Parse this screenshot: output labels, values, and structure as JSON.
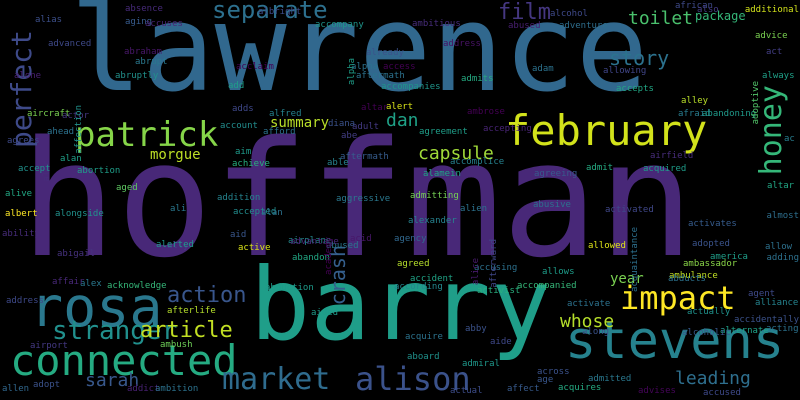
{
  "wordcloud": {
    "colors": {
      "background": "#000000",
      "dark_purple": "#46186e",
      "purple": "#482878",
      "indigo": "#3b528b",
      "blue": "#31688e",
      "teal_blue": "#26828e",
      "teal": "#1f9e89",
      "green": "#35b779",
      "light_green": "#6dcd59",
      "yellow_green": "#b4de2c",
      "yellow": "#e1e31e",
      "deep_violet": "#440154"
    },
    "words": [
      {
        "text": "hoffman",
        "color": "#482878"
      },
      {
        "text": "lawrence",
        "color": "#31688e"
      },
      {
        "text": "barry",
        "color": "#1f9e89"
      },
      {
        "text": "february",
        "color": "#d2e21b"
      },
      {
        "text": "stevens",
        "color": "#26828e"
      },
      {
        "text": "rosa",
        "color": "#2a788e"
      },
      {
        "text": "connected",
        "color": "#25ab82"
      },
      {
        "text": "impact",
        "color": "#fde725"
      },
      {
        "text": "patrick",
        "color": "#86d549"
      },
      {
        "text": "alison",
        "color": "#3b528b"
      },
      {
        "text": "market",
        "color": "#2f6c8e"
      },
      {
        "text": "honey",
        "color": "#35b779"
      },
      {
        "text": "separate",
        "color": "#2d708e"
      },
      {
        "text": "perfect",
        "color": "#3e4a89"
      },
      {
        "text": "stranger",
        "color": "#21908d"
      },
      {
        "text": "article",
        "color": "#c2df23"
      },
      {
        "text": "action",
        "color": "#39568c"
      },
      {
        "text": "capsule",
        "color": "#a0da39"
      },
      {
        "text": "film",
        "color": "#453781"
      },
      {
        "text": "story",
        "color": "#2c728e"
      },
      {
        "text": "crash",
        "color": "#355f8d"
      },
      {
        "text": "sarah",
        "color": "#38588c"
      },
      {
        "text": "whose",
        "color": "#b5de2b"
      },
      {
        "text": "leading",
        "color": "#2e6f8e"
      },
      {
        "text": "toilet",
        "color": "#4ac16d"
      },
      {
        "text": "dan",
        "color": "#1fa187"
      },
      {
        "text": "summary",
        "color": "#b8de29"
      },
      {
        "text": "morgue",
        "color": "#bddf26"
      },
      {
        "text": "year",
        "color": "#7ad151"
      },
      {
        "text": "package",
        "color": "#35b779"
      },
      {
        "text": "aircraft",
        "color": "#7ad151"
      },
      {
        "text": "ahead",
        "color": "#2c728e"
      },
      {
        "text": "albert",
        "color": "#fde725"
      },
      {
        "text": "alive",
        "color": "#22a884"
      },
      {
        "text": "abigail",
        "color": "#46327e"
      },
      {
        "text": "alex",
        "color": "#2a788e"
      },
      {
        "text": "affair",
        "color": "#482878"
      },
      {
        "text": "address",
        "color": "#3e4989"
      },
      {
        "text": "airport",
        "color": "#443983"
      },
      {
        "text": "allen",
        "color": "#31688e"
      },
      {
        "text": "adopt",
        "color": "#3b528b"
      },
      {
        "text": "addict",
        "color": "#482173"
      },
      {
        "text": "ambition",
        "color": "#2c728e"
      },
      {
        "text": "ambush",
        "color": "#6ece58"
      },
      {
        "text": "afterlife",
        "color": "#b5de2b"
      },
      {
        "text": "acknowledge",
        "color": "#35b779"
      },
      {
        "text": "alongside",
        "color": "#21918c"
      },
      {
        "text": "ally",
        "color": "#433e85"
      },
      {
        "text": "alerted",
        "color": "#1f988b"
      },
      {
        "text": "active",
        "color": "#d8e219"
      },
      {
        "text": "airplane",
        "color": "#23898e"
      },
      {
        "text": "abandon",
        "color": "#22a884"
      },
      {
        "text": "abused",
        "color": "#2a788e"
      },
      {
        "text": "advantage",
        "color": "#482878"
      },
      {
        "text": "acid",
        "color": "#481769"
      },
      {
        "text": "agency",
        "color": "#31688e"
      },
      {
        "text": "academy",
        "color": "#440154"
      },
      {
        "text": "alexander",
        "color": "#26828e"
      },
      {
        "text": "aggressive",
        "color": "#2a788e"
      },
      {
        "text": "admitting",
        "color": "#75d054"
      },
      {
        "text": "accepted",
        "color": "#228c8d"
      },
      {
        "text": "addition",
        "color": "#25838e"
      },
      {
        "text": "achieve",
        "color": "#29af7f"
      },
      {
        "text": "aged",
        "color": "#5ec962"
      },
      {
        "text": "abortion",
        "color": "#1f9e89"
      },
      {
        "text": "alan",
        "color": "#1fa088"
      },
      {
        "text": "alec",
        "color": "#472d7b"
      },
      {
        "text": "agrees",
        "color": "#3e4a89"
      },
      {
        "text": "actor",
        "color": "#453781"
      },
      {
        "text": "ability",
        "color": "#472c7a"
      },
      {
        "text": "accept",
        "color": "#20928c"
      },
      {
        "text": "alpha",
        "color": "#2c728e"
      },
      {
        "text": "access",
        "color": "#440154"
      },
      {
        "text": "aftermath",
        "color": "#365c8d"
      },
      {
        "text": "alien",
        "color": "#2c728e"
      },
      {
        "text": "ambulance",
        "color": "#c0df25"
      },
      {
        "text": "airfield",
        "color": "#472d7b"
      },
      {
        "text": "acquired",
        "color": "#1e9c89"
      },
      {
        "text": "admit",
        "color": "#25ab82"
      },
      {
        "text": "alley",
        "color": "#b8de29"
      },
      {
        "text": "afraid",
        "color": "#287c8e"
      },
      {
        "text": "abandoning",
        "color": "#1f9a8a"
      },
      {
        "text": "african",
        "color": "#3e4a89"
      },
      {
        "text": "also",
        "color": "#443b84"
      },
      {
        "text": "additional",
        "color": "#d2e21b"
      },
      {
        "text": "advice",
        "color": "#7ad151"
      },
      {
        "text": "act",
        "color": "#433e85"
      },
      {
        "text": "always",
        "color": "#1fa088"
      },
      {
        "text": "adoptive",
        "color": "#52c569"
      },
      {
        "text": "ac",
        "color": "#287d8e"
      },
      {
        "text": "altar",
        "color": "#22a785"
      },
      {
        "text": "almost",
        "color": "#2e6f8e"
      },
      {
        "text": "allow",
        "color": "#2d718e"
      },
      {
        "text": "adding",
        "color": "#2d718e"
      },
      {
        "text": "america",
        "color": "#1f9e89"
      },
      {
        "text": "agent",
        "color": "#3e4a89"
      },
      {
        "text": "alliance",
        "color": "#25838e"
      },
      {
        "text": "accidentally",
        "color": "#3b528b"
      },
      {
        "text": "acting",
        "color": "#2c728e"
      },
      {
        "text": "alternate",
        "color": "#1fa188"
      },
      {
        "text": "alcoholic",
        "color": "#38598c"
      },
      {
        "text": "advises",
        "color": "#450559"
      },
      {
        "text": "accused",
        "color": "#3e4989"
      },
      {
        "text": "acquires",
        "color": "#25ab82"
      },
      {
        "text": "admitted",
        "color": "#2a788e"
      },
      {
        "text": "age",
        "color": "#39568c"
      },
      {
        "text": "across",
        "color": "#3b528b"
      },
      {
        "text": "affect",
        "color": "#375a8c"
      },
      {
        "text": "aide",
        "color": "#3f4889"
      },
      {
        "text": "actual",
        "color": "#3d4d8a"
      },
      {
        "text": "admiral",
        "color": "#1f988b"
      },
      {
        "text": "abby",
        "color": "#3b528b"
      },
      {
        "text": "aboard",
        "color": "#20928c"
      },
      {
        "text": "acquire",
        "color": "#2c738e"
      },
      {
        "text": "aided",
        "color": "#1e9b8a"
      },
      {
        "text": "activist",
        "color": "#29af7f"
      },
      {
        "text": "accompanied",
        "color": "#35b779"
      },
      {
        "text": "accusing",
        "color": "#2d718e"
      },
      {
        "text": "accident",
        "color": "#20a486"
      },
      {
        "text": "according",
        "color": "#24878e"
      },
      {
        "text": "allows",
        "color": "#1e9c89"
      },
      {
        "text": "activate",
        "color": "#2c728e"
      },
      {
        "text": "along",
        "color": "#3b528b"
      },
      {
        "text": "actually",
        "color": "#20928c"
      },
      {
        "text": "abducts",
        "color": "#2c728e"
      },
      {
        "text": "ambassador",
        "color": "#89d548"
      },
      {
        "text": "adopted",
        "color": "#3a538b"
      },
      {
        "text": "activates",
        "color": "#365c8d"
      },
      {
        "text": "acquaintance",
        "color": "#2d708e"
      },
      {
        "text": "allowed",
        "color": "#dde318"
      },
      {
        "text": "activated",
        "color": "#3f4788"
      },
      {
        "text": "abusive",
        "color": "#2d708e"
      },
      {
        "text": "agreeing",
        "color": "#38598c"
      },
      {
        "text": "accomplice",
        "color": "#26818e"
      },
      {
        "text": "alamein",
        "color": "#20a386"
      },
      {
        "text": "adult",
        "color": "#443a83"
      },
      {
        "text": "abe",
        "color": "#433e85"
      },
      {
        "text": "able",
        "color": "#26828e"
      },
      {
        "text": "agreed",
        "color": "#b5de2b"
      },
      {
        "text": "alice",
        "color": "#481a6c"
      },
      {
        "text": "afterward",
        "color": "#3f4788"
      },
      {
        "text": "abduction",
        "color": "#1e9b8a"
      },
      {
        "text": "absence",
        "color": "#472a7a"
      },
      {
        "text": "aging",
        "color": "#375b8d"
      },
      {
        "text": "accuses",
        "color": "#482475"
      },
      {
        "text": "albright",
        "color": "#3e4c8a"
      },
      {
        "text": "accompany",
        "color": "#1f958b"
      },
      {
        "text": "ambitious",
        "color": "#472d7b"
      },
      {
        "text": "alcohol",
        "color": "#3e4989"
      },
      {
        "text": "abused",
        "color": "#481f70"
      },
      {
        "text": "adventure",
        "color": "#2e6e8e"
      },
      {
        "text": "alias",
        "color": "#3c4f8a"
      },
      {
        "text": "advanced",
        "color": "#3e4989"
      },
      {
        "text": "abraham",
        "color": "#481769"
      },
      {
        "text": "abrupt",
        "color": "#2a788e"
      },
      {
        "text": "abruptly",
        "color": "#21918c"
      },
      {
        "text": "alone",
        "color": "#482173"
      },
      {
        "text": "affection",
        "color": "#21918c"
      },
      {
        "text": "already",
        "color": "#3b528b"
      },
      {
        "text": "aftermath",
        "color": "#2c728e"
      },
      {
        "text": "accompanies",
        "color": "#1f958b"
      },
      {
        "text": "admits",
        "color": "#25ab82"
      },
      {
        "text": "adam",
        "color": "#2c728e"
      },
      {
        "text": "allowing",
        "color": "#404688"
      },
      {
        "text": "accepts",
        "color": "#22a785"
      },
      {
        "text": "alert",
        "color": "#d8e219"
      },
      {
        "text": "altar",
        "color": "#440154"
      },
      {
        "text": "ambrose",
        "color": "#440154"
      },
      {
        "text": "accepting",
        "color": "#482475"
      },
      {
        "text": "agreement",
        "color": "#1f9e89"
      },
      {
        "text": "account",
        "color": "#228d8d"
      },
      {
        "text": "alfred",
        "color": "#26828e"
      },
      {
        "text": "afford",
        "color": "#2c728e"
      },
      {
        "text": "aim",
        "color": "#1f9a8a"
      },
      {
        "text": "adds",
        "color": "#3f4889"
      },
      {
        "text": "add",
        "color": "#1f9e89"
      },
      {
        "text": "diana",
        "color": "#3b528b"
      },
      {
        "text": "ali",
        "color": "#2a788e"
      },
      {
        "text": "aid",
        "color": "#39568c"
      },
      {
        "text": "alan",
        "color": "#2c728e"
      },
      {
        "text": "acclaim",
        "color": "#440154"
      },
      {
        "text": "alpha",
        "color": "#1f9e89"
      },
      {
        "text": "address",
        "color": "#471365"
      }
    ]
  }
}
